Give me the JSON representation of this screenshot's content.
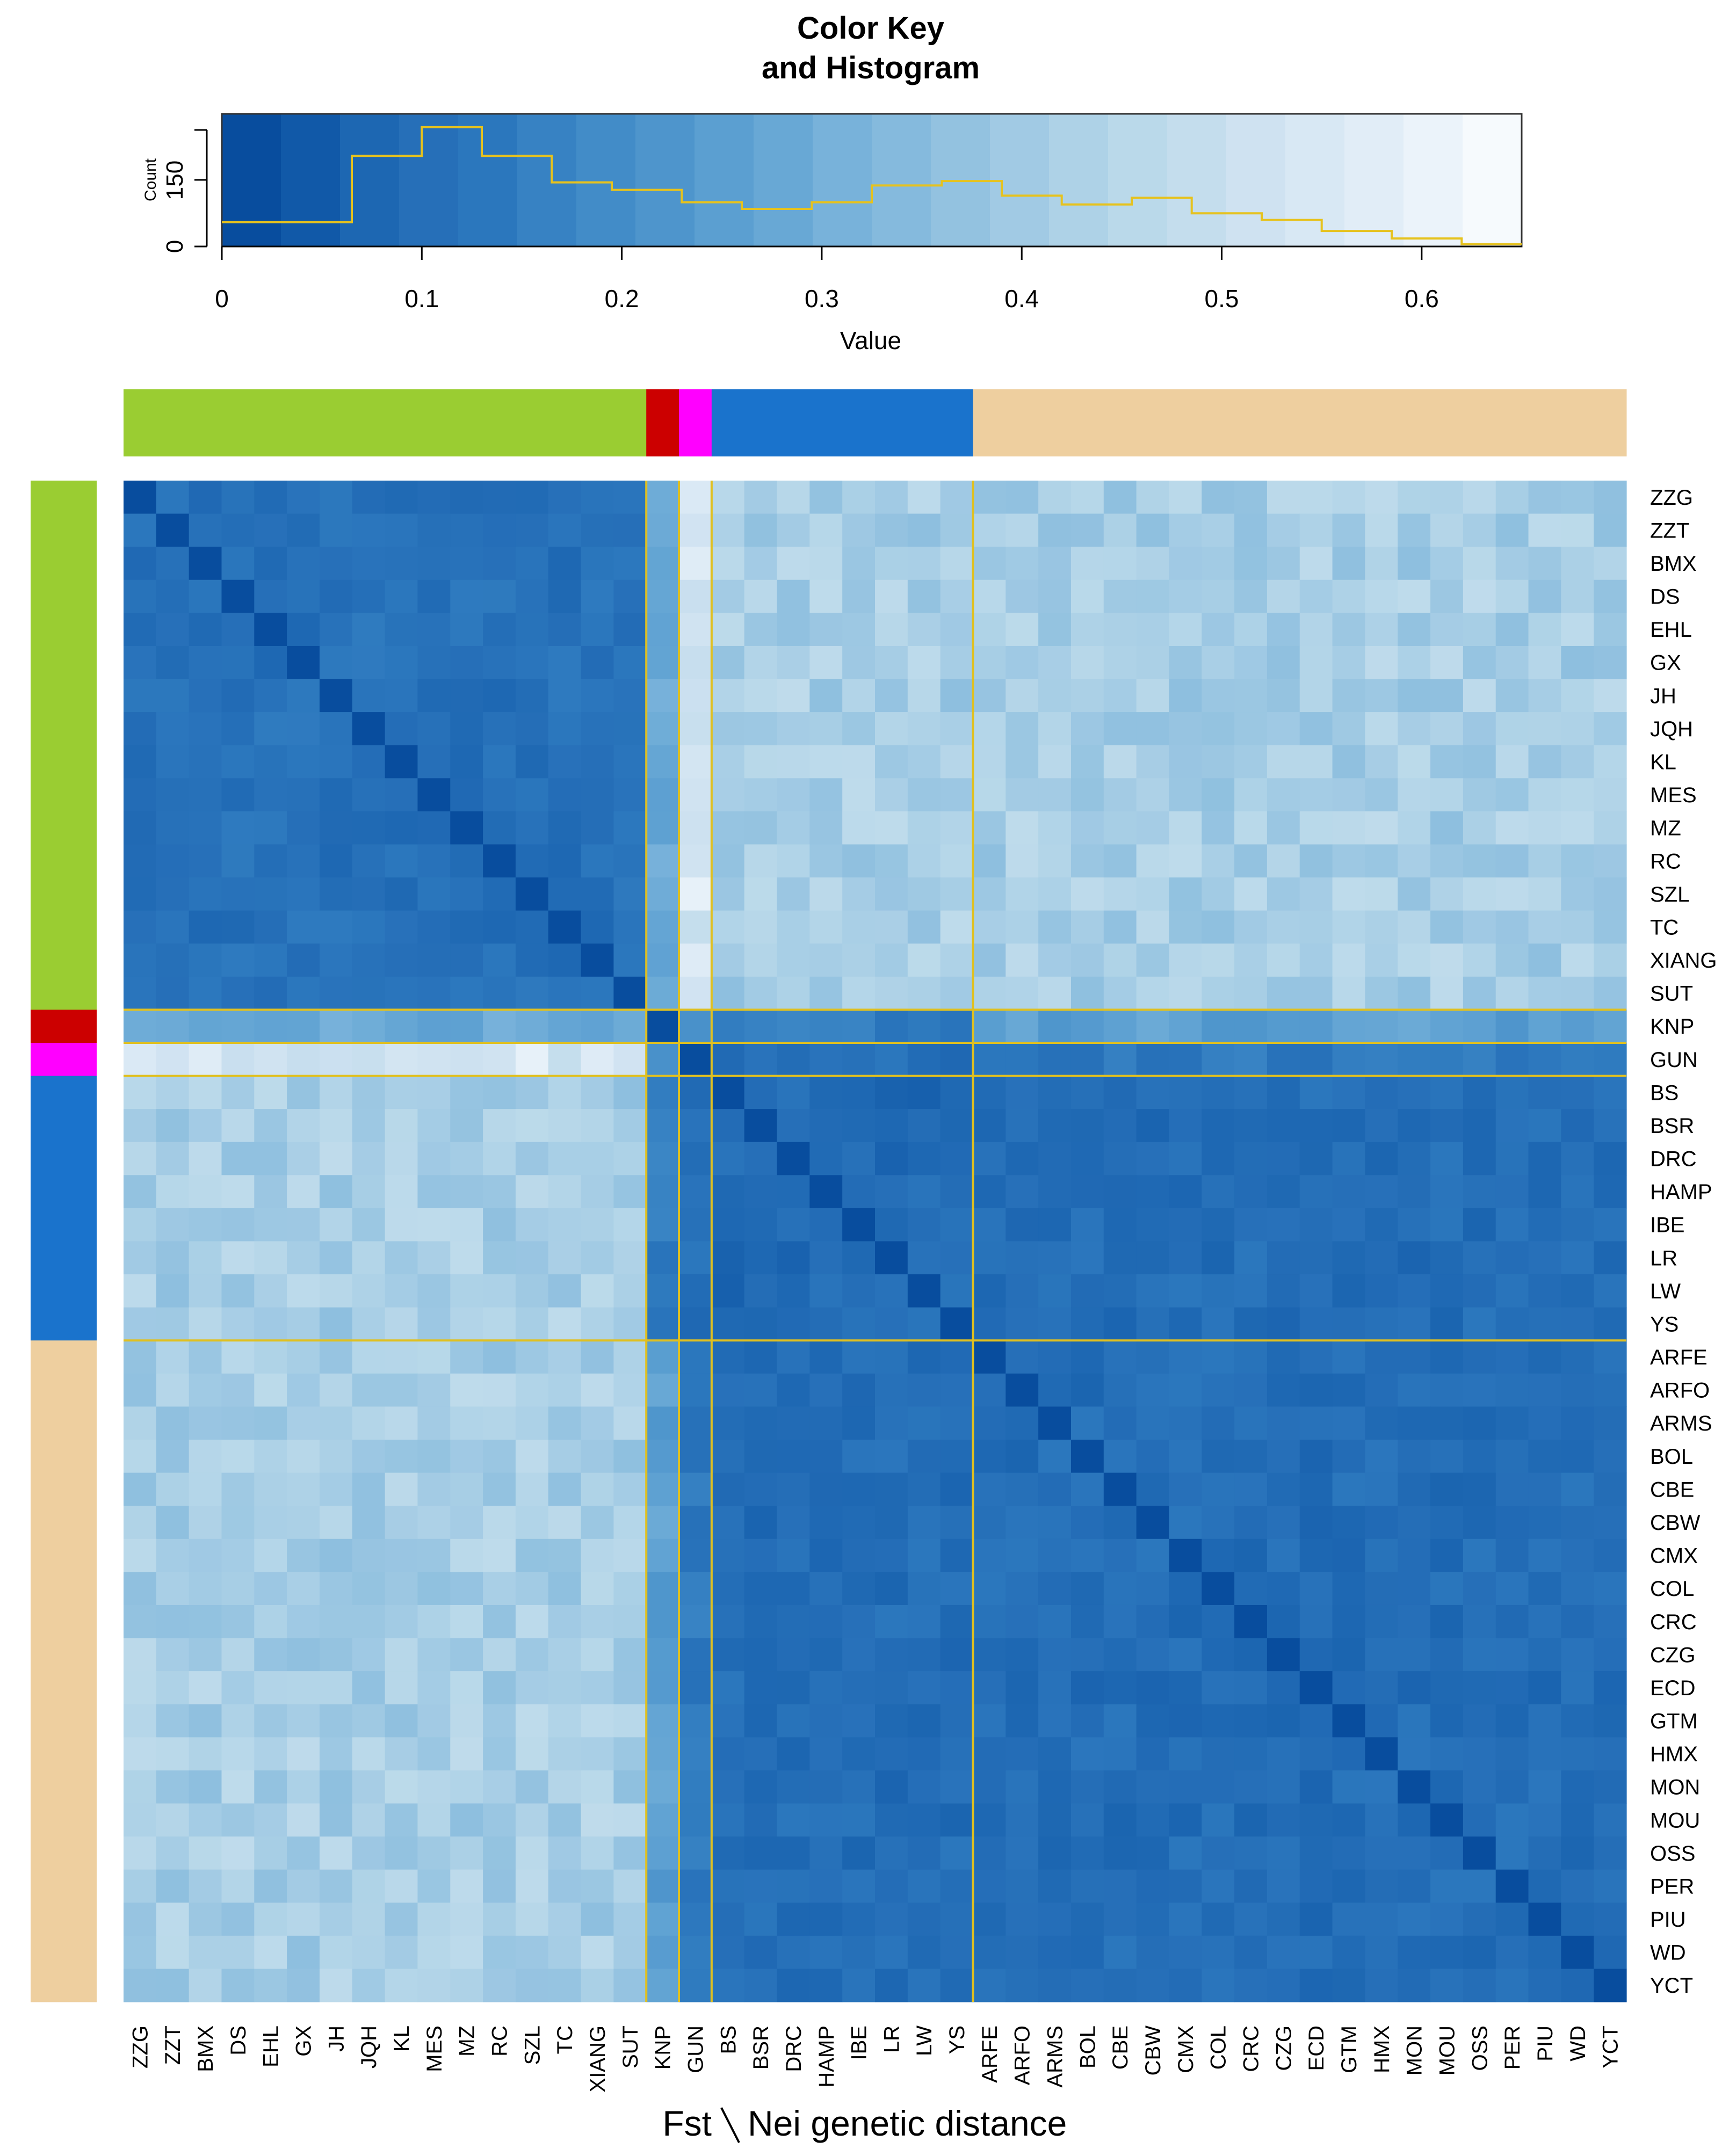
{
  "chart_data": {
    "type": "heatmap",
    "key": {
      "title_line1": "Color Key",
      "title_line2": "and Histogram",
      "xlabel": "Value",
      "ylabel": "Count",
      "xticks": [
        "0",
        "0.1",
        "0.2",
        "0.3",
        "0.4",
        "0.5",
        "0.6"
      ],
      "xtick_values": [
        0,
        0.1,
        0.2,
        0.3,
        0.4,
        0.5,
        0.6
      ],
      "yticks": [
        "0",
        "150"
      ],
      "ytick_values": [
        0,
        150
      ],
      "xlim": [
        0,
        0.65
      ],
      "ylim": [
        0,
        300
      ],
      "colors": [
        "#084d9e",
        "#1159a8",
        "#1d67b2",
        "#266fb8",
        "#2b77bd",
        "#3782c3",
        "#428cc8",
        "#4e95cc",
        "#5b9fd1",
        "#68a8d5",
        "#78b2da",
        "#85badd",
        "#93c2e0",
        "#a1cae4",
        "#aed2e7",
        "#bad9ea",
        "#c4dded",
        "#cfe2f1",
        "#d8e8f4",
        "#e1edf7",
        "#ebf3fa",
        "#f6fafd"
      ],
      "hist_breaks": [
        0,
        0.065,
        0.1,
        0.13,
        0.165,
        0.195,
        0.23,
        0.26,
        0.295,
        0.325,
        0.36,
        0.39,
        0.42,
        0.455,
        0.485,
        0.52,
        0.55,
        0.585,
        0.62,
        0.65
      ],
      "hist_counts": [
        55,
        205,
        270,
        205,
        145,
        128,
        100,
        85,
        100,
        138,
        148,
        115,
        95,
        110,
        75,
        60,
        35,
        18,
        5
      ]
    },
    "group_colors": {
      "green": "#9acd32",
      "red": "#cc0000",
      "magenta": "#ff00ff",
      "blue": "#1a73cc",
      "tan": "#eecf9f"
    },
    "group_sizes": [
      16,
      1,
      1,
      8,
      20
    ],
    "group_order": [
      "green",
      "red",
      "magenta",
      "blue",
      "tan"
    ],
    "separator_color": "#e0c020",
    "populations": [
      "ZZG",
      "ZZT",
      "BMX",
      "DS",
      "EHL",
      "GX",
      "JH",
      "JQH",
      "KL",
      "MES",
      "MZ",
      "RC",
      "SZL",
      "TC",
      "XIANG",
      "SUT",
      "KNP",
      "GUN",
      "BS",
      "BSR",
      "DRC",
      "HAMP",
      "IBE",
      "LR",
      "LW",
      "YS",
      "ARFE",
      "ARFO",
      "ARMS",
      "BOL",
      "CBE",
      "CBW",
      "CMX",
      "COL",
      "CRC",
      "CZG",
      "ECD",
      "GTM",
      "HMX",
      "MON",
      "MOU",
      "OSS",
      "PER",
      "PIU",
      "WD",
      "YCT"
    ],
    "xlabel": "Fst \\ Nei genetic distance",
    "xlabel_left": "Fst",
    "xlabel_right": "Nei genetic distance",
    "value_range": [
      0,
      0.65
    ],
    "block_means": [
      [
        0.1,
        0.28,
        0.55,
        0.42,
        0.42
      ],
      [
        0.28,
        0.0,
        0.22,
        0.14,
        0.25
      ],
      [
        0.55,
        0.22,
        0.0,
        0.1,
        0.13
      ],
      [
        0.42,
        0.14,
        0.1,
        0.08,
        0.09
      ],
      [
        0.42,
        0.25,
        0.13,
        0.09,
        0.09
      ]
    ]
  }
}
